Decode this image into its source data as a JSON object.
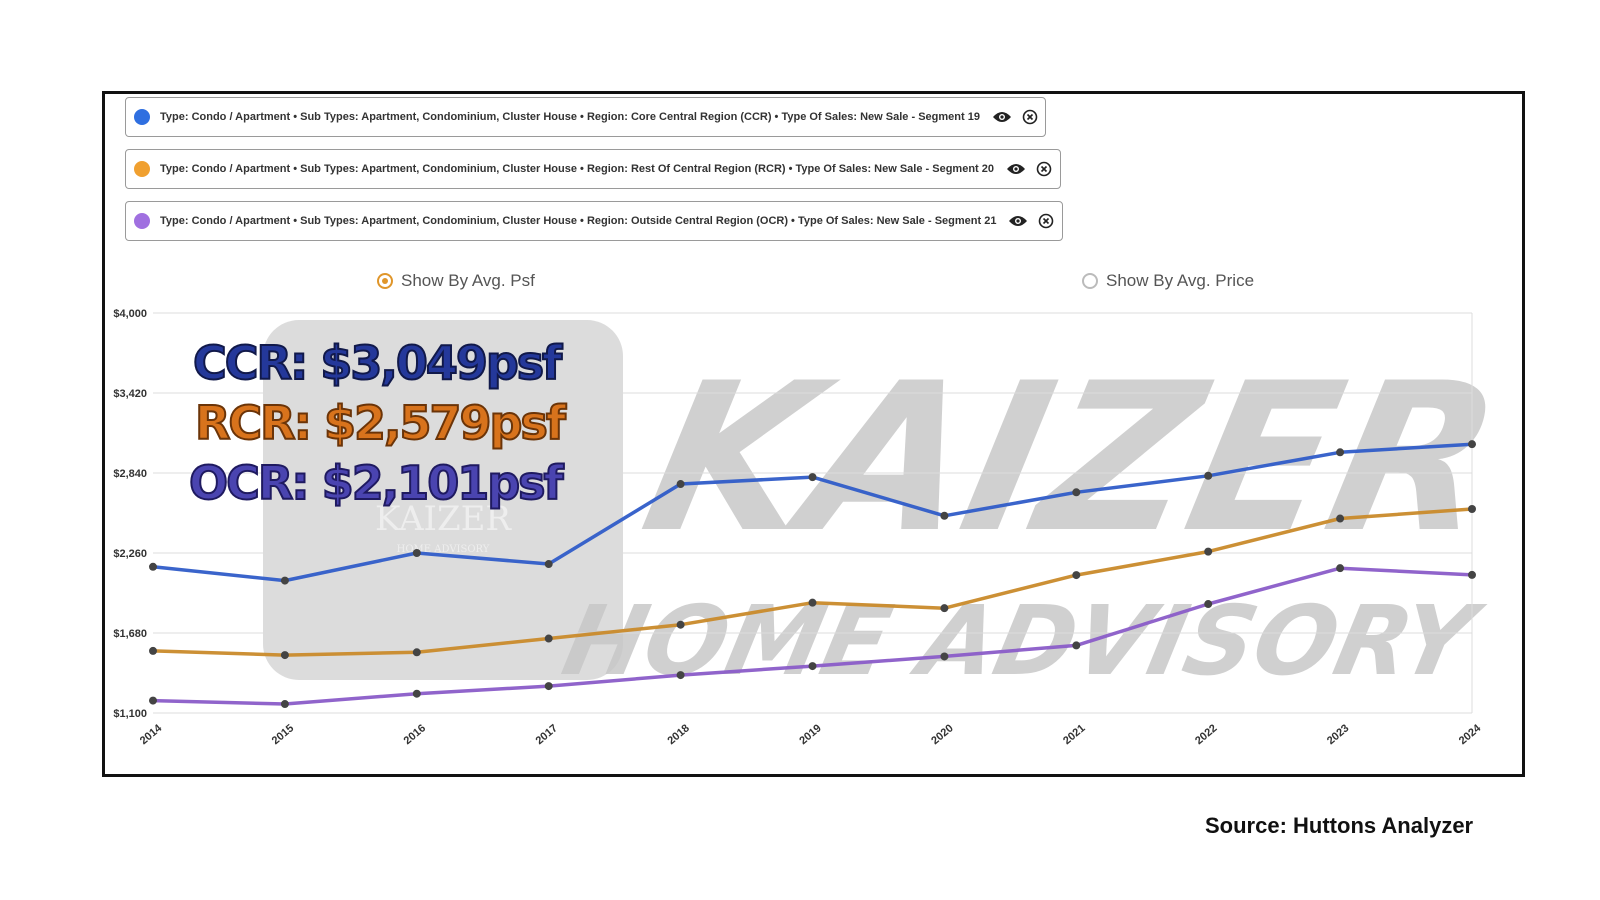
{
  "segments": [
    {
      "label": "Type: Condo / Apartment • Sub Types: Apartment, Condominium, Cluster House • Region: Core Central Region (CCR) • Type Of Sales: New Sale - Segment 19",
      "color": "#2f6fe0"
    },
    {
      "label": "Type: Condo / Apartment • Sub Types: Apartment, Condominium, Cluster House • Region: Rest Of Central Region (RCR) • Type Of Sales: New Sale - Segment 20",
      "color": "#f0a030"
    },
    {
      "label": "Type: Condo / Apartment • Sub Types: Apartment, Condominium, Cluster House • Region: Outside Central Region (OCR) • Type Of Sales: New Sale - Segment 21",
      "color": "#a070e0"
    }
  ],
  "toggle": {
    "option_psf": "Show By Avg. Psf",
    "option_price": "Show By Avg. Price",
    "selected": "psf"
  },
  "overlay": {
    "ccr": "CCR: $3,049psf",
    "rcr": "RCR: $2,579psf",
    "ocr": "OCR: $2,101psf",
    "ccr_color": "#24389a",
    "rcr_color": "#d8731c",
    "ocr_color": "#4a44b0"
  },
  "watermark": {
    "line1": "KAIZER",
    "line2": "HOME ADVISORY",
    "logo_text": "KAIZER",
    "logo_sub": "HOME ADVISORY"
  },
  "source": "Source: Huttons Analyzer",
  "chart_data": {
    "type": "line",
    "x": [
      "2014",
      "2015",
      "2016",
      "2017",
      "2018",
      "2019",
      "2020",
      "2021",
      "2022",
      "2023",
      "2024"
    ],
    "y_ticks": [
      "$4,000",
      "$3,420",
      "$2,840",
      "$2,260",
      "$1,680",
      "$1,100"
    ],
    "ylim": [
      1100,
      4000
    ],
    "grid": true,
    "series": [
      {
        "name": "CCR",
        "color": "#2f5cc8",
        "values": [
          2160,
          2060,
          2260,
          2180,
          2760,
          2810,
          2530,
          2700,
          2820,
          2990,
          3049
        ]
      },
      {
        "name": "RCR",
        "color": "#c98a2a",
        "values": [
          1550,
          1520,
          1540,
          1640,
          1740,
          1900,
          1860,
          2100,
          2270,
          2510,
          2579
        ]
      },
      {
        "name": "OCR",
        "color": "#8a5cc8",
        "values": [
          1190,
          1165,
          1240,
          1295,
          1375,
          1440,
          1510,
          1590,
          1890,
          2150,
          2101
        ]
      }
    ]
  }
}
